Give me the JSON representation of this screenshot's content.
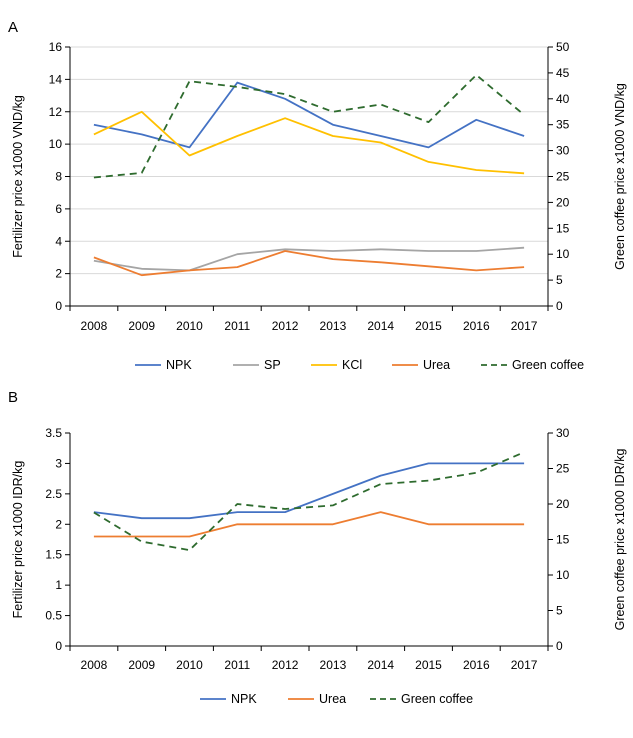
{
  "chart_data": [
    {
      "panel": "A",
      "type": "line",
      "categories": [
        "2008",
        "2009",
        "2010",
        "2011",
        "2012",
        "2013",
        "2014",
        "2015",
        "2016",
        "2017"
      ],
      "ylabel": "Fertilizer price x1000 VND/kg",
      "y2label": "Green coffee price x1000 VND/kg",
      "ylim": [
        0,
        16
      ],
      "y2lim": [
        0,
        50
      ],
      "yticks": [
        "0",
        "2",
        "4",
        "6",
        "8",
        "10",
        "12",
        "14",
        "16"
      ],
      "y2ticks": [
        "0",
        "5",
        "10",
        "15",
        "20",
        "25",
        "30",
        "35",
        "40",
        "45",
        "50"
      ],
      "grid": true,
      "legend_position": "bottom",
      "series": [
        {
          "name": "NPK",
          "axis": "left",
          "color": "#4472C4",
          "dash": "solid",
          "values": [
            11.2,
            10.6,
            9.8,
            13.8,
            12.8,
            11.2,
            10.5,
            9.8,
            11.5,
            10.5
          ]
        },
        {
          "name": "SP",
          "axis": "left",
          "color": "#A5A5A5",
          "dash": "solid",
          "values": [
            2.8,
            2.3,
            2.2,
            3.2,
            3.5,
            3.4,
            3.5,
            3.4,
            3.4,
            3.6
          ]
        },
        {
          "name": "KCl",
          "axis": "left",
          "color": "#FFC000",
          "dash": "solid",
          "values": [
            10.6,
            12.0,
            9.3,
            10.5,
            11.6,
            10.5,
            10.1,
            8.9,
            8.4,
            8.2
          ]
        },
        {
          "name": "Urea",
          "axis": "left",
          "color": "#ED7D31",
          "dash": "solid",
          "values": [
            3.0,
            1.9,
            2.2,
            2.4,
            3.4,
            2.9,
            2.7,
            2.45,
            2.2,
            2.4
          ]
        },
        {
          "name": "Green coffee",
          "axis": "right",
          "color": "#2E6B2E",
          "dash": "dashed",
          "values": [
            24.8,
            25.7,
            43.4,
            42.3,
            40.9,
            37.5,
            38.9,
            35.5,
            44.6,
            36.9
          ]
        }
      ]
    },
    {
      "panel": "B",
      "type": "line",
      "categories": [
        "2008",
        "2009",
        "2010",
        "2011",
        "2012",
        "2013",
        "2014",
        "2015",
        "2016",
        "2017"
      ],
      "ylabel": "Fertilizer price x1000 IDR/kg",
      "y2label": "Green coffee price x1000 IDR/kg",
      "ylim": [
        0,
        3.5
      ],
      "y2lim": [
        0,
        30
      ],
      "yticks": [
        "0",
        "0.5",
        "1",
        "1.5",
        "2",
        "2.5",
        "3",
        "3.5"
      ],
      "y2ticks": [
        "0",
        "5",
        "10",
        "15",
        "20",
        "25",
        "30"
      ],
      "grid": false,
      "legend_position": "bottom",
      "series": [
        {
          "name": "NPK",
          "axis": "left",
          "color": "#4472C4",
          "dash": "solid",
          "values": [
            2.2,
            2.1,
            2.1,
            2.2,
            2.2,
            2.5,
            2.8,
            3.0,
            3.0,
            3.0
          ]
        },
        {
          "name": "Urea",
          "axis": "left",
          "color": "#ED7D31",
          "dash": "solid",
          "values": [
            1.8,
            1.8,
            1.8,
            2.0,
            2.0,
            2.0,
            2.2,
            2.0,
            2.0,
            2.0
          ]
        },
        {
          "name": "Green coffee",
          "axis": "right",
          "color": "#2E6B2E",
          "dash": "dashed",
          "values": [
            18.8,
            14.7,
            13.5,
            20.0,
            19.3,
            19.8,
            22.8,
            23.3,
            24.4,
            27.3
          ]
        }
      ]
    }
  ]
}
